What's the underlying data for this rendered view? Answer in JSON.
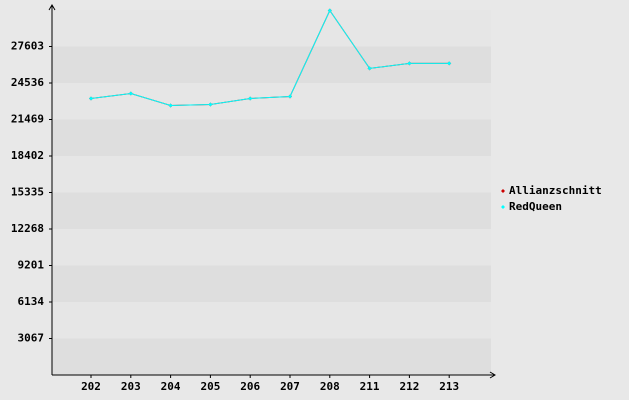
{
  "chart_data": {
    "type": "line",
    "categories": [
      "202",
      "203",
      "204",
      "205",
      "206",
      "207",
      "208",
      "211",
      "212",
      "213"
    ],
    "series": [
      {
        "name": "Allianzschnitt",
        "color": "#cc0000",
        "values": [
          23234,
          23654,
          22646,
          22730,
          23234,
          23402,
          30628,
          25764,
          26184,
          26184
        ]
      },
      {
        "name": "RedQueen",
        "color": "#00ffff",
        "values": [
          23234,
          23654,
          22646,
          22730,
          23234,
          23402,
          30628,
          25764,
          26184,
          26184
        ]
      }
    ],
    "ylim": [
      0,
      30670
    ],
    "yticks": [
      3067,
      6134,
      9201,
      12268,
      15335,
      18402,
      21469,
      24536,
      27603
    ],
    "grid": true
  }
}
